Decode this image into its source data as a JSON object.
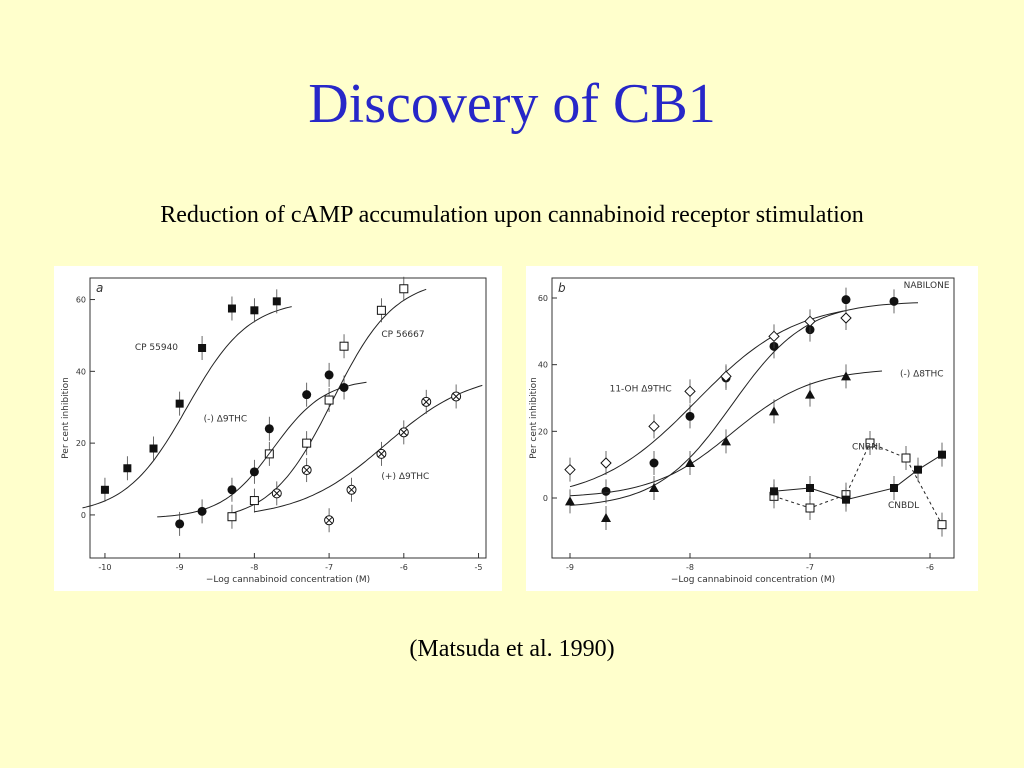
{
  "slide": {
    "title": "Discovery of CB1",
    "subtitle": "Reduction of cAMP accumulation upon cannabinoid receptor stimulation",
    "citation": "(Matsuda et al. 1990)"
  },
  "colors": {
    "title": "#2727c8",
    "background": "#ffffcc"
  },
  "chart_data": [
    {
      "type": "scatter",
      "panel_label": "a",
      "xlabel": "−Log cannabinoid concentration (M)",
      "ylabel": "Per cent inhibition",
      "xlim": [
        -10.2,
        -4.9
      ],
      "ylim": [
        -12,
        66
      ],
      "xticks": [
        -10,
        -9,
        -8,
        -7,
        -6,
        -5
      ],
      "xtick_labels": [
        "-10",
        "-9",
        "-8",
        "-7",
        "-6",
        "-5"
      ],
      "yticks": [
        0,
        20,
        40,
        60
      ],
      "ytick_labels": [
        "0",
        "20",
        "40",
        "60"
      ],
      "series": [
        {
          "name": "CP 55940",
          "marker": "filled-square",
          "x": [
            -10,
            -9.7,
            -9.35,
            -9,
            -8.7,
            -8.3,
            -8,
            -7.7
          ],
          "y": [
            7,
            13,
            18.5,
            31,
            46.5,
            57.5,
            57,
            59.5
          ],
          "curve": {
            "bottom": 0,
            "top": 60,
            "ec50": -8.9,
            "hill": 1.05
          },
          "curve_range": [
            -10.3,
            -7.5
          ]
        },
        {
          "name": "CP 56667",
          "marker": "open-square",
          "x": [
            -8.3,
            -8,
            -7.8,
            -7.3,
            -7,
            -6.8,
            -6.3,
            -6
          ],
          "y": [
            -0.5,
            4,
            17,
            20,
            32,
            47,
            57,
            63
          ],
          "curve": {
            "bottom": -2,
            "top": 66,
            "ec50": -6.95,
            "hill": 1.05
          },
          "curve_range": [
            -8.3,
            -5.7
          ]
        },
        {
          "name": "(-) Δ9THC",
          "marker": "filled-circle",
          "x": [
            -9,
            -8.7,
            -8.3,
            -8,
            -7.8,
            -7.3,
            -7,
            -6.8
          ],
          "y": [
            -2.5,
            1,
            7,
            12,
            24,
            33.5,
            39,
            35.5
          ],
          "curve": {
            "bottom": -1,
            "top": 38,
            "ec50": -7.75,
            "hill": 1.25
          },
          "curve_range": [
            -9.3,
            -6.5
          ]
        },
        {
          "name": "(+) Δ9THC",
          "marker": "circle-cross",
          "x": [
            -7.7,
            -7,
            -7.3,
            -6.7,
            -6.3,
            -6,
            -5.7,
            -5.3
          ],
          "y": [
            6,
            -1.5,
            12.5,
            7,
            17,
            23,
            31.5,
            33
          ],
          "curve": {
            "bottom": -1,
            "top": 40,
            "ec50": -6.25,
            "hill": 0.75
          },
          "curve_range": [
            -8,
            -4.95
          ]
        }
      ],
      "annotations": [
        {
          "text": "CP 55940",
          "x": -9.6,
          "y": 46
        },
        {
          "text": "CP 56667",
          "x": -6.3,
          "y": 49.5
        },
        {
          "text": "(-) Δ9THC",
          "x": -8.68,
          "y": 26
        },
        {
          "text": "(+) Δ9THC",
          "x": -6.3,
          "y": 10
        }
      ]
    },
    {
      "type": "scatter",
      "panel_label": "b",
      "xlabel": "−Log cannabinoid concentration (M)",
      "ylabel": "Per cent inhibition",
      "xlim": [
        -9.15,
        -5.8
      ],
      "ylim": [
        -18,
        66
      ],
      "xticks": [
        -9,
        -8,
        -7,
        -6
      ],
      "xtick_labels": [
        "-9",
        "-8",
        "-7",
        "-6"
      ],
      "yticks": [
        0,
        20,
        40,
        60
      ],
      "ytick_labels": [
        "0",
        "20",
        "40",
        "60"
      ],
      "series": [
        {
          "name": "NABILONE",
          "marker": "filled-circle",
          "x": [
            -8.7,
            -8.3,
            -8,
            -7.7,
            -7.3,
            -7,
            -6.7,
            -6.3
          ],
          "y": [
            2,
            10.5,
            24.5,
            36,
            45.5,
            50.5,
            59.5,
            59
          ],
          "curve": {
            "bottom": -3,
            "top": 59,
            "ec50": -7.65,
            "hill": 1.4
          },
          "curve_range": [
            -9,
            -6.1
          ]
        },
        {
          "name": "11-OH Δ9THC",
          "marker": "open-diamond",
          "x": [
            -9,
            -8.7,
            -8.3,
            -8,
            -7.7,
            -7.3,
            -7,
            -6.7
          ],
          "y": [
            8.5,
            10.5,
            21.5,
            32,
            36.5,
            48.5,
            53,
            54
          ],
          "curve": {
            "bottom": -1,
            "top": 59,
            "ec50": -7.95,
            "hill": 1.05
          },
          "curve_range": [
            -9,
            -6.7
          ]
        },
        {
          "name": "(-) Δ8THC",
          "marker": "filled-triangle",
          "x": [
            -9,
            -8.7,
            -8.3,
            -8,
            -7.7,
            -7.3,
            -7,
            -6.7
          ],
          "y": [
            -1,
            -6,
            3,
            10.5,
            17,
            26,
            31,
            36.5
          ],
          "curve": {
            "bottom": 0,
            "top": 39,
            "ec50": -7.65,
            "hill": 1.3
          },
          "curve_range": [
            -9,
            -6.4
          ]
        },
        {
          "name": "CNBNL",
          "marker": "open-square",
          "style": "dashed",
          "x": [
            -7.3,
            -7,
            -6.7,
            -6.5,
            -6.2,
            -5.9
          ],
          "y": [
            0.5,
            -3,
            1,
            16.5,
            12,
            -8
          ],
          "curve_range": [
            -7.3,
            -5.9
          ]
        },
        {
          "name": "CNBDL",
          "marker": "filled-square",
          "x": [
            -7.3,
            -7,
            -6.7,
            -6.3,
            -6.1,
            -5.9
          ],
          "y": [
            2,
            3,
            -0.5,
            3,
            8.5,
            13
          ],
          "curve_range": [
            -7.3,
            -5.9
          ]
        }
      ],
      "annotations": [
        {
          "text": "NABILONE",
          "x": -6.22,
          "y": 63
        },
        {
          "text": "11-OH Δ9THC",
          "x": -8.67,
          "y": 32
        },
        {
          "text": "(-) Δ8THC",
          "x": -6.25,
          "y": 36.5
        },
        {
          "text": "CNBNL",
          "x": -6.65,
          "y": 14.5
        },
        {
          "text": "CNBDL",
          "x": -6.35,
          "y": -3
        }
      ]
    }
  ]
}
